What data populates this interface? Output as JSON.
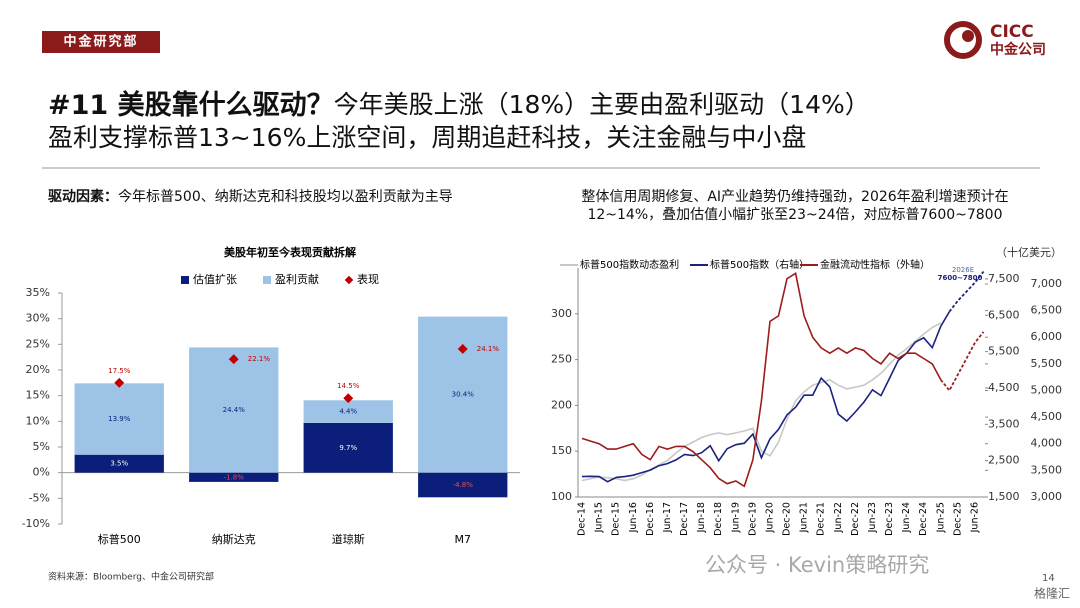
{
  "header": {
    "tag": "中金研究部",
    "logo_en": "CICC",
    "logo_cn": "中金公司"
  },
  "title": {
    "lead": "#11 美股靠什么驱动？",
    "rest": "今年美股上涨（18%）主要由盈利驱动（14%）",
    "line2": "盈利支撑标普13~16%上涨空间，周期追赶科技，关注金融与中小盘"
  },
  "left_note": {
    "lead": "驱动因素：",
    "rest": "今年标普500、纳斯达克和科技股均以盈利贡献为主导"
  },
  "right_note": {
    "line1": "整体信用周期修复、AI产业趋势仍维持强劲，2026年盈利增速预计在",
    "line2": "12~14%，叠加估值小幅扩张至23~24倍，对应标普7600~7800"
  },
  "chart_data": [
    {
      "type": "bar",
      "title": "美股年初至今表现贡献拆解",
      "categories": [
        "标普500",
        "纳斯达克",
        "道琼斯",
        "M7"
      ],
      "series": [
        {
          "name": "估值扩张",
          "type": "bar",
          "color": "#0b1f7a",
          "values": [
            3.5,
            -1.8,
            9.7,
            -4.8
          ],
          "value_labels": [
            "3.5%",
            "-1.8%",
            "9.7%",
            "-4.8%"
          ]
        },
        {
          "name": "盈利贡献",
          "type": "bar",
          "color": "#9dc3e6",
          "values": [
            13.9,
            24.4,
            4.4,
            30.4
          ],
          "value_labels": [
            "13.9%",
            "24.4%",
            "4.4%",
            "30.4%"
          ]
        },
        {
          "name": "表现",
          "type": "scatter",
          "color": "#c00000",
          "values": [
            17.5,
            22.1,
            14.5,
            24.1
          ],
          "value_labels": [
            "17.5%",
            "22.1%",
            "14.5%",
            "24.1%"
          ]
        }
      ],
      "ylim": [
        -10,
        35
      ],
      "yticks": [
        {
          "value": -10,
          "label": "-10%"
        },
        {
          "value": -5,
          "label": "-5%"
        },
        {
          "value": 0,
          "label": "0%"
        },
        {
          "value": 5,
          "label": "5%"
        },
        {
          "value": 10,
          "label": "10%"
        },
        {
          "value": 15,
          "label": "15%"
        },
        {
          "value": 20,
          "label": "20%"
        },
        {
          "value": 25,
          "label": "25%"
        },
        {
          "value": 30,
          "label": "30%"
        },
        {
          "value": 35,
          "label": "35%"
        }
      ]
    },
    {
      "type": "line",
      "y3_label": "（十亿美元）",
      "annotations": [
        "2026E",
        "7600~7800"
      ],
      "x": [
        "Dec-14",
        null,
        "Jun-15",
        null,
        "Dec-15",
        null,
        "Jun-16",
        null,
        "Dec-16",
        null,
        "Jun-17",
        null,
        "Dec-17",
        null,
        "Jun-18",
        null,
        "Dec-18",
        null,
        "Jun-19",
        null,
        "Dec-19",
        null,
        "Jun-20",
        null,
        "Dec-20",
        null,
        "Jun-21",
        null,
        "Dec-21",
        null,
        "Jun-22",
        null,
        "Dec-22",
        null,
        "Jun-23",
        null,
        "Dec-23",
        null,
        "Jun-24",
        null,
        "Dec-24",
        null,
        "Jun-25",
        null,
        "Dec-25",
        null,
        "Jun-26",
        null
      ],
      "series": [
        {
          "name": "标普500指数动态盈利",
          "color": "#c8c8c8",
          "values": [
            118,
            120,
            122,
            121,
            120,
            118,
            120,
            124,
            130,
            135,
            140,
            148,
            155,
            160,
            165,
            168,
            170,
            168,
            170,
            172,
            175,
            150,
            145,
            160,
            185,
            205,
            215,
            222,
            225,
            228,
            222,
            218,
            220,
            222,
            228,
            235,
            245,
            255,
            262,
            270,
            278,
            285,
            290,
            null,
            null,
            null,
            null,
            null
          ]
        },
        {
          "name": "标普500指数（右轴）",
          "axis": "y2",
          "color": "#1a237e",
          "values": [
            2060,
            2070,
            2060,
            1920,
            2040,
            2060,
            2100,
            2170,
            2240,
            2360,
            2420,
            2520,
            2670,
            2640,
            2720,
            2910,
            2500,
            2830,
            2940,
            2980,
            3230,
            2580,
            3100,
            3360,
            3760,
            3970,
            4300,
            4300,
            4770,
            4530,
            3780,
            3590,
            3840,
            4110,
            4450,
            4290,
            4770,
            5250,
            5460,
            5760,
            5880,
            5610,
            6200,
            6600,
            null,
            null,
            null,
            null
          ]
        },
        {
          "axis": "y2",
          "color": "#1a237e",
          "dash": true,
          "values": [
            null,
            null,
            null,
            null,
            null,
            null,
            null,
            null,
            null,
            null,
            null,
            null,
            null,
            null,
            null,
            null,
            null,
            null,
            null,
            null,
            null,
            null,
            null,
            null,
            null,
            null,
            null,
            null,
            null,
            null,
            null,
            null,
            null,
            null,
            null,
            null,
            null,
            null,
            null,
            null,
            null,
            null,
            null,
            6600,
            6900,
            7150,
            7400,
            7700
          ]
        },
        {
          "name": "金融流动性指标（外轴）",
          "axis": "y3",
          "color": "#9b1c1c",
          "values": [
            4100,
            4050,
            4000,
            3900,
            3900,
            3950,
            4000,
            3800,
            3700,
            3950,
            3900,
            3950,
            3950,
            3850,
            3700,
            3550,
            3350,
            3250,
            3300,
            3200,
            3700,
            4800,
            6300,
            6400,
            7100,
            7200,
            6400,
            6000,
            5800,
            5700,
            5800,
            5700,
            5800,
            5750,
            5600,
            5500,
            5700,
            5600,
            5700,
            5700,
            5600,
            5500,
            5200,
            null,
            null,
            null,
            null,
            null
          ]
        },
        {
          "axis": "y3",
          "color": "#9b1c1c",
          "dash": true,
          "values": [
            null,
            null,
            null,
            null,
            null,
            null,
            null,
            null,
            null,
            null,
            null,
            null,
            null,
            null,
            null,
            null,
            null,
            null,
            null,
            null,
            null,
            null,
            null,
            null,
            null,
            null,
            null,
            null,
            null,
            null,
            null,
            null,
            null,
            null,
            null,
            null,
            null,
            null,
            null,
            null,
            null,
            null,
            5200,
            5000,
            5300,
            5600,
            5900,
            6100
          ]
        }
      ],
      "ylim": [
        100,
        350
      ],
      "yticks": [
        100,
        150,
        200,
        250,
        300
      ],
      "y2lim": [
        1500,
        7800
      ],
      "y2ticks": [
        {
          "value": 1500,
          "label": "1,500"
        },
        {
          "value": 2500,
          "label": "2,500"
        },
        {
          "value": 3500,
          "label": "3,500"
        },
        {
          "value": 4500,
          "label": "4,500"
        },
        {
          "value": 5500,
          "label": "5,500"
        },
        {
          "value": 6500,
          "label": "6,500"
        },
        {
          "value": 7500,
          "label": "7,500"
        }
      ],
      "y3lim": [
        3000,
        7300
      ],
      "y3ticks": [
        {
          "value": 3000,
          "label": "3,000"
        },
        {
          "value": 3500,
          "label": "3,500"
        },
        {
          "value": 4000,
          "label": "4,000"
        },
        {
          "value": 4500,
          "label": "4,500"
        },
        {
          "value": 5000,
          "label": "5,000"
        },
        {
          "value": 5500,
          "label": "5,500"
        },
        {
          "value": 6000,
          "label": "6,000"
        },
        {
          "value": 6500,
          "label": "6,500"
        },
        {
          "value": 7000,
          "label": "7,000"
        }
      ]
    }
  ],
  "footer": {
    "source": "资料来源：Bloomberg、中金公司研究部",
    "page": "14",
    "watermark": "公众号 · Kevin策略研究",
    "badge": "格隆汇"
  }
}
